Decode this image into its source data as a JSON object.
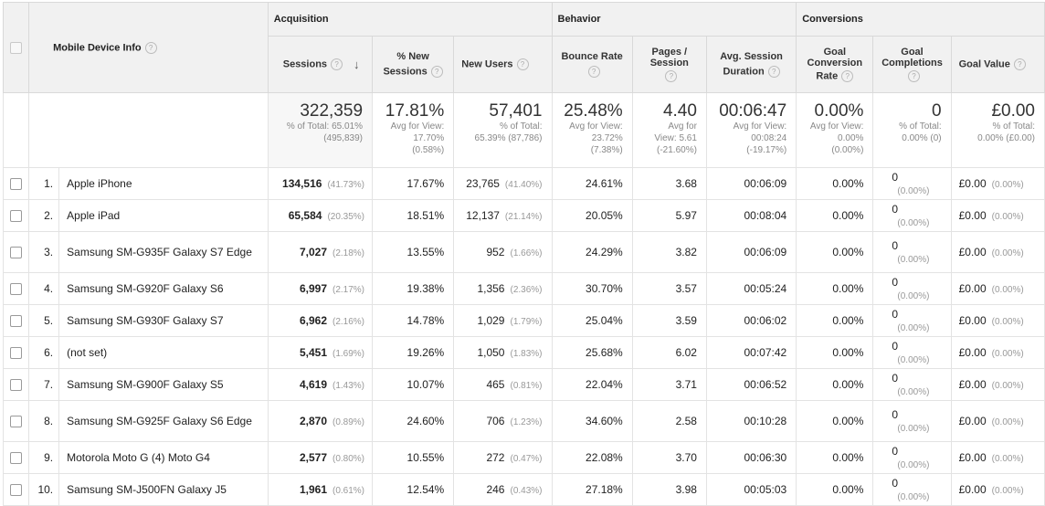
{
  "groups": {
    "acquisition": "Acquisition",
    "behavior": "Behavior",
    "conversions": "Conversions"
  },
  "headers": {
    "device_info": "Mobile Device Info",
    "sessions": "Sessions",
    "new_sessions_l1": "% New",
    "new_sessions_l2": "Sessions",
    "new_users": "New Users",
    "bounce_rate": "Bounce Rate",
    "pages_l1": "Pages /",
    "pages_l2": "Session",
    "avg_dur_l1": "Avg. Session",
    "avg_dur_l2": "Duration",
    "goal_conv_l1": "Goal",
    "goal_conv_l2": "Conversion",
    "goal_conv_l3": "Rate",
    "goal_comp_l1": "Goal",
    "goal_comp_l2": "Completions",
    "goal_value": "Goal Value",
    "help_glyph": "?",
    "sort_glyph": "↓"
  },
  "totals": {
    "sessions": {
      "value": "322,359",
      "sub1": "% of Total: 65.01%",
      "sub2": "(495,839)"
    },
    "new_sessions": {
      "value": "17.81%",
      "sub1": "Avg for View:",
      "sub2": "17.70%",
      "sub3": "(0.58%)"
    },
    "new_users": {
      "value": "57,401",
      "sub1": "% of Total:",
      "sub2": "65.39% (87,786)"
    },
    "bounce_rate": {
      "value": "25.48%",
      "sub1": "Avg for View:",
      "sub2": "23.72%",
      "sub3": "(7.38%)"
    },
    "pages": {
      "value": "4.40",
      "sub1": "Avg for",
      "sub2": "View: 5.61",
      "sub3": "(-21.60%)"
    },
    "avg_dur": {
      "value": "00:06:47",
      "sub1": "Avg for View:",
      "sub2": "00:08:24",
      "sub3": "(-19.17%)"
    },
    "goal_conv": {
      "value": "0.00%",
      "sub1": "Avg for View:",
      "sub2": "0.00%",
      "sub3": "(0.00%)"
    },
    "goal_comp": {
      "value": "0",
      "sub1": "% of Total:",
      "sub2": "0.00% (0)"
    },
    "goal_value": {
      "value": "£0.00",
      "sub1": "% of Total:",
      "sub2": "0.00% (£0.00)"
    }
  },
  "rows": [
    {
      "index": "1.",
      "name": "Apple iPhone",
      "sessions": "134,516",
      "sessions_pct": "(41.73%)",
      "new_sessions": "17.67%",
      "new_users": "23,765",
      "new_users_pct": "(41.40%)",
      "bounce_rate": "24.61%",
      "pages": "3.68",
      "avg_dur": "00:06:09",
      "goal_conv": "0.00%",
      "goal_comp": "0",
      "goal_comp_pct": "(0.00%)",
      "goal_value": "£0.00",
      "goal_value_pct": "(0.00%)"
    },
    {
      "index": "2.",
      "name": "Apple iPad",
      "sessions": "65,584",
      "sessions_pct": "(20.35%)",
      "new_sessions": "18.51%",
      "new_users": "12,137",
      "new_users_pct": "(21.14%)",
      "bounce_rate": "20.05%",
      "pages": "5.97",
      "avg_dur": "00:08:04",
      "goal_conv": "0.00%",
      "goal_comp": "0",
      "goal_comp_pct": "(0.00%)",
      "goal_value": "£0.00",
      "goal_value_pct": "(0.00%)"
    },
    {
      "index": "3.",
      "name": "Samsung SM-G935F Galaxy S7 Edge",
      "sessions": "7,027",
      "sessions_pct": "(2.18%)",
      "new_sessions": "13.55%",
      "new_users": "952",
      "new_users_pct": "(1.66%)",
      "bounce_rate": "24.29%",
      "pages": "3.82",
      "avg_dur": "00:06:09",
      "goal_conv": "0.00%",
      "goal_comp": "0",
      "goal_comp_pct": "(0.00%)",
      "goal_value": "£0.00",
      "goal_value_pct": "(0.00%)"
    },
    {
      "index": "4.",
      "name": "Samsung SM-G920F Galaxy S6",
      "sessions": "6,997",
      "sessions_pct": "(2.17%)",
      "new_sessions": "19.38%",
      "new_users": "1,356",
      "new_users_pct": "(2.36%)",
      "bounce_rate": "30.70%",
      "pages": "3.57",
      "avg_dur": "00:05:24",
      "goal_conv": "0.00%",
      "goal_comp": "0",
      "goal_comp_pct": "(0.00%)",
      "goal_value": "£0.00",
      "goal_value_pct": "(0.00%)"
    },
    {
      "index": "5.",
      "name": "Samsung SM-G930F Galaxy S7",
      "sessions": "6,962",
      "sessions_pct": "(2.16%)",
      "new_sessions": "14.78%",
      "new_users": "1,029",
      "new_users_pct": "(1.79%)",
      "bounce_rate": "25.04%",
      "pages": "3.59",
      "avg_dur": "00:06:02",
      "goal_conv": "0.00%",
      "goal_comp": "0",
      "goal_comp_pct": "(0.00%)",
      "goal_value": "£0.00",
      "goal_value_pct": "(0.00%)"
    },
    {
      "index": "6.",
      "name": "(not set)",
      "sessions": "5,451",
      "sessions_pct": "(1.69%)",
      "new_sessions": "19.26%",
      "new_users": "1,050",
      "new_users_pct": "(1.83%)",
      "bounce_rate": "25.68%",
      "pages": "6.02",
      "avg_dur": "00:07:42",
      "goal_conv": "0.00%",
      "goal_comp": "0",
      "goal_comp_pct": "(0.00%)",
      "goal_value": "£0.00",
      "goal_value_pct": "(0.00%)"
    },
    {
      "index": "7.",
      "name": "Samsung SM-G900F Galaxy S5",
      "sessions": "4,619",
      "sessions_pct": "(1.43%)",
      "new_sessions": "10.07%",
      "new_users": "465",
      "new_users_pct": "(0.81%)",
      "bounce_rate": "22.04%",
      "pages": "3.71",
      "avg_dur": "00:06:52",
      "goal_conv": "0.00%",
      "goal_comp": "0",
      "goal_comp_pct": "(0.00%)",
      "goal_value": "£0.00",
      "goal_value_pct": "(0.00%)"
    },
    {
      "index": "8.",
      "name": "Samsung SM-G925F Galaxy S6 Edge",
      "sessions": "2,870",
      "sessions_pct": "(0.89%)",
      "new_sessions": "24.60%",
      "new_users": "706",
      "new_users_pct": "(1.23%)",
      "bounce_rate": "34.60%",
      "pages": "2.58",
      "avg_dur": "00:10:28",
      "goal_conv": "0.00%",
      "goal_comp": "0",
      "goal_comp_pct": "(0.00%)",
      "goal_value": "£0.00",
      "goal_value_pct": "(0.00%)"
    },
    {
      "index": "9.",
      "name": "Motorola Moto G (4) Moto G4",
      "sessions": "2,577",
      "sessions_pct": "(0.80%)",
      "new_sessions": "10.55%",
      "new_users": "272",
      "new_users_pct": "(0.47%)",
      "bounce_rate": "22.08%",
      "pages": "3.70",
      "avg_dur": "00:06:30",
      "goal_conv": "0.00%",
      "goal_comp": "0",
      "goal_comp_pct": "(0.00%)",
      "goal_value": "£0.00",
      "goal_value_pct": "(0.00%)"
    },
    {
      "index": "10.",
      "name": "Samsung SM-J500FN Galaxy J5",
      "sessions": "1,961",
      "sessions_pct": "(0.61%)",
      "new_sessions": "12.54%",
      "new_users": "246",
      "new_users_pct": "(0.43%)",
      "bounce_rate": "27.18%",
      "pages": "3.98",
      "avg_dur": "00:05:03",
      "goal_conv": "0.00%",
      "goal_comp": "0",
      "goal_comp_pct": "(0.00%)",
      "goal_value": "£0.00",
      "goal_value_pct": "(0.00%)"
    }
  ]
}
